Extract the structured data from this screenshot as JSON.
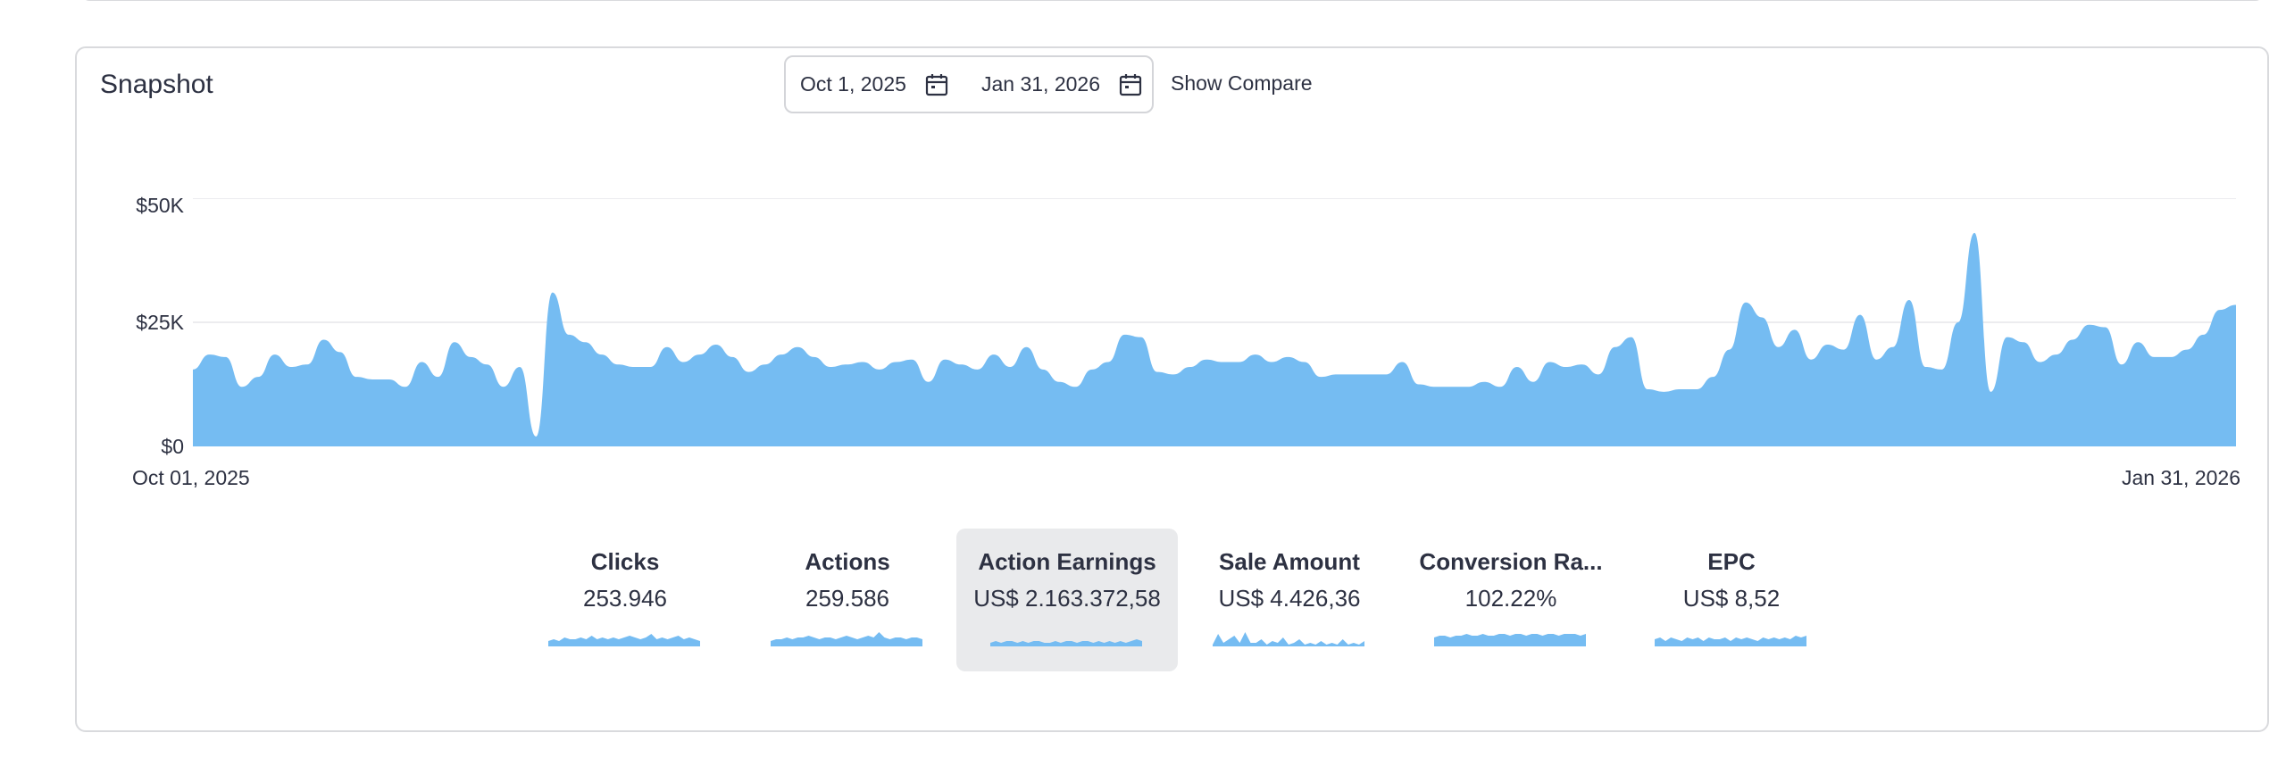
{
  "snapshot": {
    "title": "Snapshot",
    "date_start": "Oct 1, 2025",
    "date_end": "Jan 31, 2026",
    "show_compare": "Show Compare"
  },
  "chart_data": {
    "type": "area",
    "color": "#75bcf2",
    "y_axis_ticks": [
      "$50K",
      "$25K",
      "$0"
    ],
    "ylim": [
      0,
      50000
    ],
    "x_labels": [
      "Oct 01, 2025",
      "Jan 31, 2026"
    ],
    "x_range": [
      "2025-10-01",
      "2026-01-31"
    ],
    "grid": true,
    "series": [
      {
        "values": [
          15500,
          18500,
          18000,
          12000,
          14000,
          18500,
          16000,
          16500,
          21500,
          19000,
          14000,
          13500,
          13500,
          12000,
          17000,
          14000,
          21000,
          18000,
          16500,
          12000,
          16000,
          2000,
          31000,
          22500,
          21000,
          18500,
          16500,
          16000,
          16000,
          20000,
          17000,
          18500,
          20500,
          18000,
          15000,
          16500,
          18500,
          20000,
          18000,
          16000,
          16500,
          17000,
          15500,
          17000,
          17500,
          13000,
          17500,
          16500,
          15500,
          18500,
          16000,
          20000,
          15500,
          13000,
          12000,
          15500,
          17000,
          22500,
          22000,
          15000,
          14500,
          16000,
          17500,
          17000,
          17000,
          18500,
          17000,
          18000,
          17000,
          14000,
          14500,
          14500,
          14500,
          14500,
          17000,
          12500,
          12000,
          12000,
          12000,
          13000,
          12000,
          16000,
          13000,
          17000,
          16000,
          16500,
          14500,
          20000,
          22000,
          11500,
          11000,
          11500,
          11500,
          14000,
          19500,
          29000,
          26000,
          20000,
          23500,
          17500,
          20500,
          19500,
          26500,
          17500,
          20000,
          29500,
          16000,
          15500,
          25000,
          43000,
          11000,
          22000,
          21000,
          17000,
          18500,
          21500,
          24500,
          24000,
          16500,
          21000,
          18000,
          18000,
          19500,
          22500,
          27500,
          28500
        ]
      }
    ]
  },
  "metrics": [
    {
      "label": "Clicks",
      "value": "253.946",
      "active": false,
      "sparkline": [
        3,
        4,
        3,
        5,
        4,
        4,
        5,
        4,
        6,
        4,
        5,
        4,
        5,
        4,
        5,
        6,
        5,
        4,
        5,
        7,
        4,
        5,
        4,
        5,
        6,
        4,
        5,
        4,
        3
      ]
    },
    {
      "label": "Actions",
      "value": "259.586",
      "active": false,
      "sparkline": [
        3,
        4,
        4,
        5,
        4,
        5,
        5,
        6,
        5,
        4,
        5,
        5,
        4,
        5,
        6,
        5,
        4,
        5,
        6,
        5,
        8,
        5,
        4,
        5,
        5,
        4,
        5,
        5,
        4
      ]
    },
    {
      "label": "Action Earnings",
      "value": "US$ 2.163.372,58",
      "active": true,
      "sparkline": [
        2,
        3,
        2,
        3,
        3,
        2,
        3,
        2,
        3,
        3,
        2,
        2,
        3,
        2,
        3,
        3,
        2,
        3,
        3,
        2,
        3,
        2,
        3,
        2,
        3,
        2,
        3,
        4,
        3
      ]
    },
    {
      "label": "Sale Amount",
      "value": "US$ 4.426,36",
      "active": false,
      "sparkline": [
        1,
        7,
        2,
        4,
        6,
        2,
        8,
        2,
        2,
        4,
        1,
        3,
        2,
        5,
        1,
        2,
        4,
        1,
        2,
        1,
        3,
        1,
        2,
        1,
        4,
        1,
        2,
        1,
        3
      ]
    },
    {
      "label": "Conversion Ra...",
      "value": "102.22%",
      "active": false,
      "sparkline": [
        5,
        6,
        6,
        5,
        6,
        6,
        7,
        6,
        6,
        7,
        6,
        6,
        7,
        7,
        6,
        7,
        7,
        6,
        7,
        7,
        6,
        7,
        7,
        6,
        7,
        7,
        7,
        6,
        7
      ]
    },
    {
      "label": "EPC",
      "value": "US$ 8,52",
      "active": false,
      "sparkline": [
        4,
        5,
        3,
        5,
        4,
        3,
        5,
        4,
        5,
        3,
        5,
        4,
        4,
        5,
        3,
        5,
        4,
        5,
        4,
        3,
        5,
        4,
        5,
        4,
        5,
        4,
        6,
        5,
        6
      ]
    }
  ]
}
